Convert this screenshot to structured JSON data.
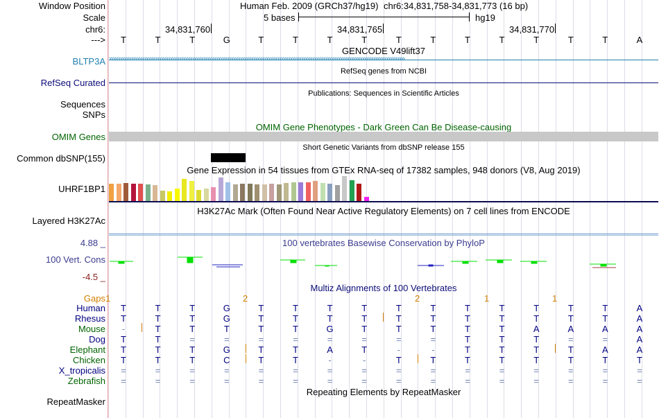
{
  "position": {
    "label": "Window Position",
    "assembly": "Human Feb. 2009 (GRCh37/hg19)",
    "range": "chr6:34,831,758-34,831,773 (16 bp)"
  },
  "scale": {
    "label": "Scale",
    "text": "5 bases",
    "db": "hg19"
  },
  "chrom": {
    "label": "chr6:",
    "arrow_label": "--->",
    "ticks": [
      "34,831,760",
      "34,831,765",
      "34,831,770"
    ]
  },
  "bases": [
    "T",
    "T",
    "T",
    "G",
    "T",
    "T",
    "T",
    "T",
    "T",
    "T",
    "T",
    "T",
    "T",
    "T",
    "T",
    "A"
  ],
  "tracks": {
    "gencode": {
      "title": "GENCODE V49lift37",
      "gene": "BLTP3A",
      "color": "#1e7fb0"
    },
    "refseq": {
      "title": "RefSeq genes from NCBI",
      "label": "RefSeq Curated"
    },
    "pubs": {
      "title": "Publications: Sequences in Scientific Articles",
      "label1": "Sequences",
      "label2": "SNPs"
    },
    "omim": {
      "title": "OMIM Gene Phenotypes - Dark Green Can Be Disease-causing",
      "label": "OMIM Genes",
      "color": "#006400"
    },
    "dbsnp": {
      "title": "Short Genetic Variants from dbSNP release 155",
      "label": "Common dbSNP(155)"
    },
    "gtex": {
      "title": "Gene Expression in 54 tissues from GTEx RNA-seq of 17382 samples, 948 donors (V8, Aug 2019)",
      "label": "UHRF1BP1"
    },
    "h3k27ac": {
      "title": "H3K27Ac Mark (Often Found Near Active Regulatory Elements) on 7 cell lines from ENCODE",
      "label": "Layered H3K27Ac"
    },
    "phylop": {
      "title": "100 vertebrates Basewise Conservation by PhyloP",
      "label": "100 Vert. Cons",
      "max": "4.88 _",
      "min": "-4.5 _"
    },
    "multiz": {
      "title": "Multiz Alignments of 100 Vertebrates",
      "gaps_label": "Gaps"
    },
    "repeatmasker": {
      "title": "Repeating Elements by RepeatMasker",
      "label": "RepeatMasker"
    }
  },
  "gap_marks": [
    "1",
    "2",
    "2",
    "1",
    "1"
  ],
  "species": [
    {
      "name": "Human",
      "color": "#000080",
      "bases": [
        "T",
        "T",
        "T",
        "G",
        "T",
        "T",
        "T",
        "T",
        "T",
        "T",
        "T",
        "T",
        "T",
        "T",
        "T",
        "A"
      ]
    },
    {
      "name": "Rhesus",
      "color": "#000080",
      "bases": [
        "T",
        "T",
        "T",
        "G",
        "T",
        "T",
        "T",
        "T",
        "T",
        "T",
        "T",
        "T",
        "T",
        "T",
        "T",
        "A"
      ]
    },
    {
      "name": "Mouse",
      "color": "#006400",
      "bases": [
        "-",
        "T",
        "T",
        "T",
        "T",
        "T",
        "G",
        "T",
        "T",
        "T",
        "T",
        "T",
        "A",
        "A",
        "A",
        "A"
      ]
    },
    {
      "name": "Dog",
      "color": "#000080",
      "bases": [
        "T",
        "T",
        "=",
        "=",
        "=",
        "=",
        "=",
        "=",
        "=",
        "=",
        "T",
        "T",
        "T",
        "=",
        "=",
        "A"
      ]
    },
    {
      "name": "Elephant",
      "color": "#006400",
      "bases": [
        "T",
        "T",
        "T",
        "G",
        "T",
        "T",
        "A",
        "T",
        "-",
        "-",
        "T",
        "T",
        "T",
        "T",
        "A",
        "A"
      ]
    },
    {
      "name": "Chicken",
      "color": "#006400",
      "bases": [
        "T",
        "T",
        "T",
        "C",
        "T",
        "T",
        "-",
        "-",
        "T",
        "T",
        "T",
        "T",
        "T",
        "T",
        "T",
        "T"
      ]
    },
    {
      "name": "X_tropicalis",
      "color": "#000080",
      "bases": [
        "=",
        "=",
        "=",
        "=",
        "=",
        "=",
        "=",
        "=",
        "=",
        "=",
        "=",
        "=",
        "=",
        "=",
        "=",
        "="
      ]
    },
    {
      "name": "Zebrafish",
      "color": "#006400",
      "bases": [
        "=",
        "=",
        "=",
        "=",
        "=",
        "=",
        "=",
        "=",
        "=",
        "=",
        "=",
        "=",
        "=",
        "=",
        "=",
        "="
      ]
    }
  ]
}
